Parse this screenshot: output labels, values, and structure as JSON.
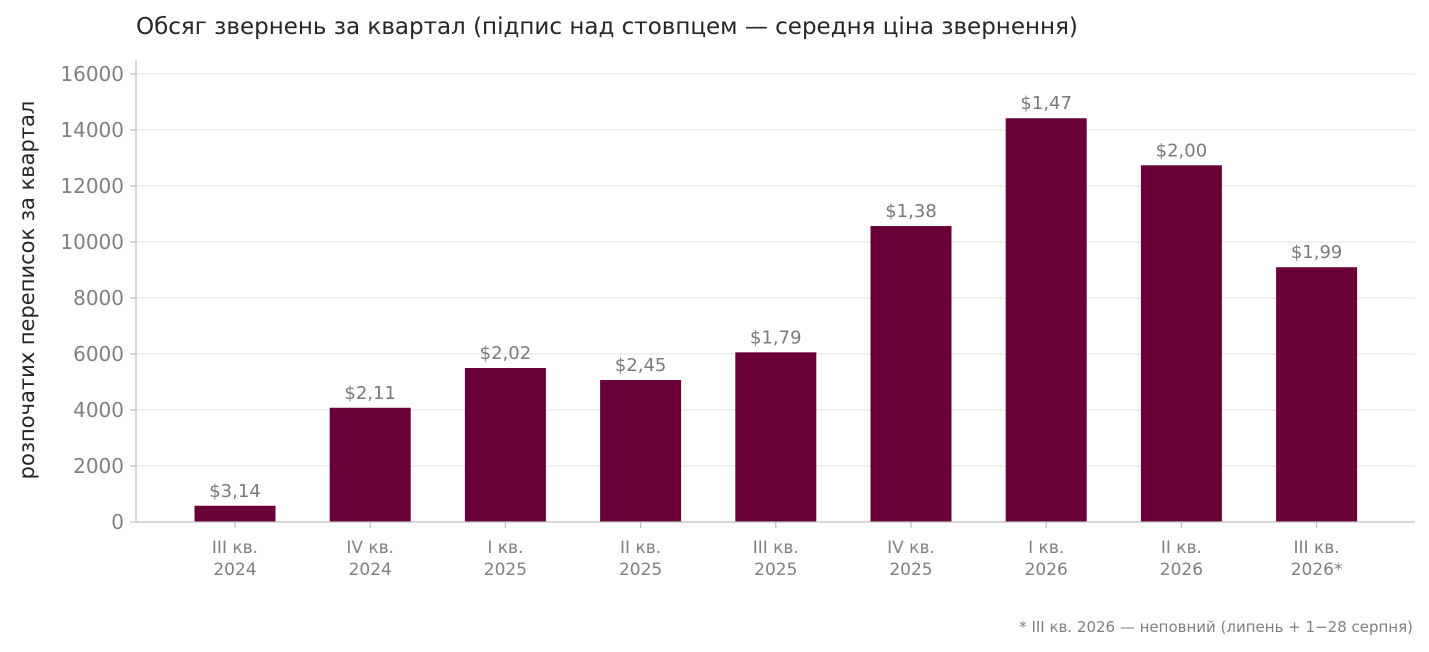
{
  "chart_data": {
    "type": "bar",
    "title": "Обсяг звернень за квартал (підпис над стовпцем — середня ціна звернення)",
    "ylabel": "розпочатих переписок за квартал",
    "xlabel": "",
    "ylim": [
      0,
      16500
    ],
    "yticks": [
      0,
      2000,
      4000,
      6000,
      8000,
      10000,
      12000,
      14000,
      16000
    ],
    "grid": true,
    "categories": [
      [
        "III кв.",
        "2024"
      ],
      [
        "IV кв.",
        "2024"
      ],
      [
        "I кв.",
        "2025"
      ],
      [
        "II кв.",
        "2025"
      ],
      [
        "III кв.",
        "2025"
      ],
      [
        "IV кв.",
        "2025"
      ],
      [
        "I кв.",
        "2026"
      ],
      [
        "II кв.",
        "2026"
      ],
      [
        "III кв.",
        "2026*"
      ]
    ],
    "values": [
      580,
      4080,
      5500,
      5070,
      6060,
      10570,
      14420,
      12740,
      9100
    ],
    "data_labels": [
      "$3,14",
      "$2,11",
      "$2,02",
      "$2,45",
      "$1,79",
      "$1,38",
      "$1,47",
      "$2,00",
      "$1,99"
    ],
    "bar_color": "#6a0038",
    "footnote": "* III кв. 2026 — неповний (липень + 1−28 серпня)"
  }
}
